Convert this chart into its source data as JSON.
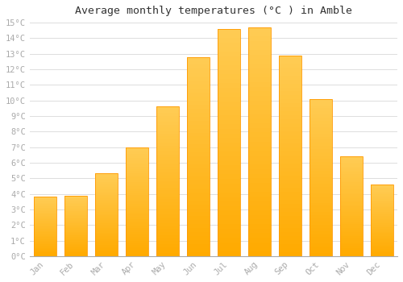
{
  "title": "Average monthly temperatures (°C ) in Amble",
  "months": [
    "Jan",
    "Feb",
    "Mar",
    "Apr",
    "May",
    "Jun",
    "Jul",
    "Aug",
    "Sep",
    "Oct",
    "Nov",
    "Dec"
  ],
  "temperatures": [
    3.8,
    3.9,
    5.3,
    7.0,
    9.6,
    12.8,
    14.6,
    14.7,
    12.9,
    10.1,
    6.4,
    4.6
  ],
  "bar_color_top": "#FFCC44",
  "bar_color_bottom": "#FFAA00",
  "bar_edge_color": "#FF9900",
  "background_color": "#FFFFFF",
  "plot_bg_color": "#FFFFFF",
  "grid_color": "#DDDDDD",
  "ylim": [
    0,
    15
  ],
  "ytick_step": 1,
  "title_fontsize": 9.5,
  "tick_fontsize": 7.5,
  "tick_label_color": "#AAAAAA",
  "title_color": "#333333",
  "font_family": "monospace",
  "bar_width": 0.75
}
